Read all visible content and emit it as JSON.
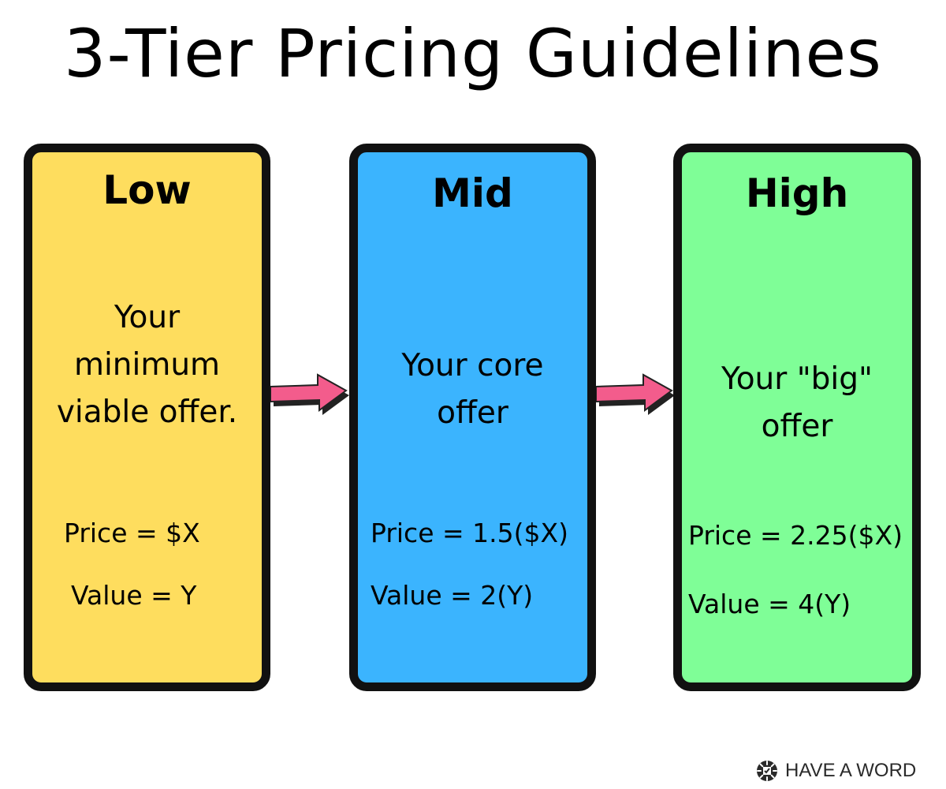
{
  "title": "3-Tier Pricing Guidelines",
  "colors": {
    "low": "#fedd5e",
    "mid": "#3bb4fe",
    "high": "#7ffe97",
    "border": "#111111",
    "arrow": "#f35c8c",
    "arrow_shadow": "#222222"
  },
  "tiers": [
    {
      "name": "Low",
      "description": "Your\nminimum\nviable offer.",
      "price": "Price = $X",
      "value": "Value = Y"
    },
    {
      "name": "Mid",
      "description": "Your core\noffer",
      "price": "Price = 1.5($X)",
      "value": "Value = 2(Y)"
    },
    {
      "name": "High",
      "description": "Your \"big\"\noffer",
      "price": "Price = 2.25($X)",
      "value": "Value = 4(Y)"
    }
  ],
  "arrows": [
    {
      "icon": "right-arrow-icon"
    },
    {
      "icon": "right-arrow-icon"
    }
  ],
  "brand": {
    "text": "HAVE A WORD",
    "icon": "have-a-word-logo-icon"
  }
}
